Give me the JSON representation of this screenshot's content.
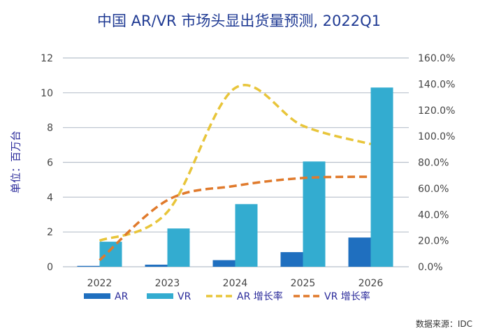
{
  "chart_data": {
    "type": "bar",
    "title": "中国 AR/VR 市场头显出货量预测, 2022Q1",
    "ylabel": "单位：百万台",
    "source": "数据来源：IDC",
    "categories": [
      "2022",
      "2023",
      "2024",
      "2025",
      "2026"
    ],
    "ylim": [
      0,
      12
    ],
    "yticks": [
      "0",
      "2",
      "4",
      "6",
      "8",
      "10",
      "12"
    ],
    "y2lim": [
      0,
      160
    ],
    "y2ticks": [
      "0.0%",
      "20.0%",
      "40.0%",
      "60.0%",
      "80.0%",
      "100.0%",
      "120.0%",
      "140.0%",
      "160.0%"
    ],
    "grid": true,
    "legend_position": "bottom",
    "series": [
      {
        "name": "AR",
        "type": "bar",
        "axis": "left",
        "color": "#1f6fbf",
        "values": [
          0.05,
          0.12,
          0.38,
          0.84,
          1.68
        ]
      },
      {
        "name": "VR",
        "type": "bar",
        "axis": "left",
        "color": "#33acd0",
        "values": [
          1.44,
          2.2,
          3.6,
          6.05,
          10.3
        ]
      },
      {
        "name": "AR 增长率",
        "type": "line",
        "style": "dashed",
        "axis": "right",
        "color": "#e8c53a",
        "values": [
          20,
          42,
          137,
          108,
          94
        ]
      },
      {
        "name": "VR 增长率",
        "type": "line",
        "style": "dashed",
        "axis": "right",
        "color": "#e07a2c",
        "values": [
          5,
          51,
          62,
          68,
          69
        ]
      }
    ]
  }
}
